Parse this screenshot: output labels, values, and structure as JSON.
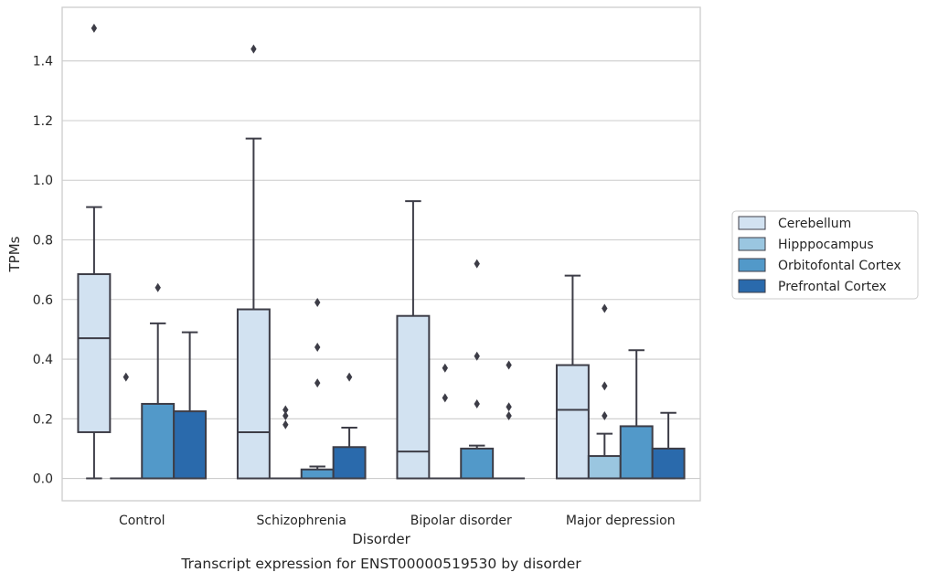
{
  "chart_data": {
    "type": "box",
    "caption": "Transcript expression for ENST00000519530 by disorder",
    "xlabel": "Disorder",
    "ylabel": "TPMs",
    "ylim": [
      -0.075,
      1.58
    ],
    "yticks": [
      "0.0",
      "0.2",
      "0.4",
      "0.6",
      "0.8",
      "1.0",
      "1.2",
      "1.4"
    ],
    "grid": "horizontal",
    "legend_position": "right",
    "categories": [
      "Control",
      "Schizophrenia",
      "Bipolar disorder",
      "Major depression"
    ],
    "series": [
      {
        "name": "Cerebellum",
        "color": "#d2e2f1",
        "boxes": [
          {
            "whisker_low": 0.0,
            "q1": 0.155,
            "median": 0.47,
            "q3": 0.685,
            "whisker_high": 0.91,
            "outliers": [
              1.51
            ]
          },
          {
            "whisker_low": 0.0,
            "q1": 0.0,
            "median": 0.155,
            "q3": 0.567,
            "whisker_high": 1.14,
            "outliers": [
              1.44
            ]
          },
          {
            "whisker_low": 0.0,
            "q1": 0.0,
            "median": 0.09,
            "q3": 0.545,
            "whisker_high": 0.93,
            "outliers": []
          },
          {
            "whisker_low": 0.0,
            "q1": 0.0,
            "median": 0.23,
            "q3": 0.38,
            "whisker_high": 0.68,
            "outliers": []
          }
        ]
      },
      {
        "name": "Hipppocampus",
        "color": "#9ac6e0",
        "boxes": [
          {
            "whisker_low": 0.0,
            "q1": 0.0,
            "median": 0.0,
            "q3": 0.0,
            "whisker_high": 0.0,
            "outliers": [
              0.34
            ]
          },
          {
            "whisker_low": 0.0,
            "q1": 0.0,
            "median": 0.0,
            "q3": 0.0,
            "whisker_high": 0.0,
            "outliers": [
              0.23,
              0.21,
              0.18
            ]
          },
          {
            "whisker_low": 0.0,
            "q1": 0.0,
            "median": 0.0,
            "q3": 0.0,
            "whisker_high": 0.0,
            "outliers": [
              0.37,
              0.27
            ]
          },
          {
            "whisker_low": 0.0,
            "q1": 0.0,
            "median": 0.0,
            "q3": 0.075,
            "whisker_high": 0.15,
            "outliers": [
              0.57,
              0.31,
              0.21
            ]
          }
        ]
      },
      {
        "name": "Orbitofontal Cortex",
        "color": "#5299c9",
        "boxes": [
          {
            "whisker_low": 0.0,
            "q1": 0.0,
            "median": 0.0,
            "q3": 0.25,
            "whisker_high": 0.52,
            "outliers": [
              0.64
            ]
          },
          {
            "whisker_low": 0.0,
            "q1": 0.0,
            "median": 0.0,
            "q3": 0.03,
            "whisker_high": 0.04,
            "outliers": [
              0.59,
              0.44,
              0.32
            ]
          },
          {
            "whisker_low": 0.0,
            "q1": 0.0,
            "median": 0.0,
            "q3": 0.1,
            "whisker_high": 0.11,
            "outliers": [
              0.72,
              0.41,
              0.25
            ]
          },
          {
            "whisker_low": 0.0,
            "q1": 0.0,
            "median": 0.0,
            "q3": 0.175,
            "whisker_high": 0.43,
            "outliers": []
          }
        ]
      },
      {
        "name": "Prefrontal Cortex",
        "color": "#2a6aac",
        "boxes": [
          {
            "whisker_low": 0.0,
            "q1": 0.0,
            "median": 0.0,
            "q3": 0.225,
            "whisker_high": 0.49,
            "outliers": []
          },
          {
            "whisker_low": 0.0,
            "q1": 0.0,
            "median": 0.0,
            "q3": 0.105,
            "whisker_high": 0.17,
            "outliers": [
              0.34
            ]
          },
          {
            "whisker_low": 0.0,
            "q1": 0.0,
            "median": 0.0,
            "q3": 0.0,
            "whisker_high": 0.0,
            "outliers": [
              0.38,
              0.24,
              0.21
            ]
          },
          {
            "whisker_low": 0.0,
            "q1": 0.0,
            "median": 0.0,
            "q3": 0.1,
            "whisker_high": 0.22,
            "outliers": []
          }
        ]
      }
    ]
  }
}
